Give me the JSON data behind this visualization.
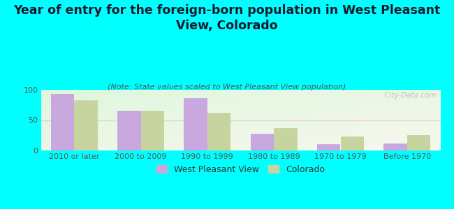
{
  "categories": [
    "2010 or later",
    "2000 to 2009",
    "1990 to 1999",
    "1980 to 1989",
    "1970 to 1979",
    "Before 1970"
  ],
  "wpv_values": [
    93,
    65,
    86,
    28,
    10,
    11
  ],
  "co_values": [
    83,
    65,
    62,
    37,
    23,
    25
  ],
  "wpv_color": "#c9a8e0",
  "co_color": "#c8d4a0",
  "title": "Year of entry for the foreign-born population in West Pleasant\nView, Colorado",
  "subtitle": "(Note: State values scaled to West Pleasant View population)",
  "bg_outer": "#00ffff",
  "ylim": [
    0,
    100
  ],
  "yticks": [
    0,
    50,
    100
  ],
  "legend_labels": [
    "West Pleasant View",
    "Colorado"
  ],
  "watermark": " City-Data.com",
  "title_fontsize": 12.5,
  "subtitle_fontsize": 8,
  "tick_fontsize": 8,
  "legend_fontsize": 9,
  "bar_width": 0.35
}
